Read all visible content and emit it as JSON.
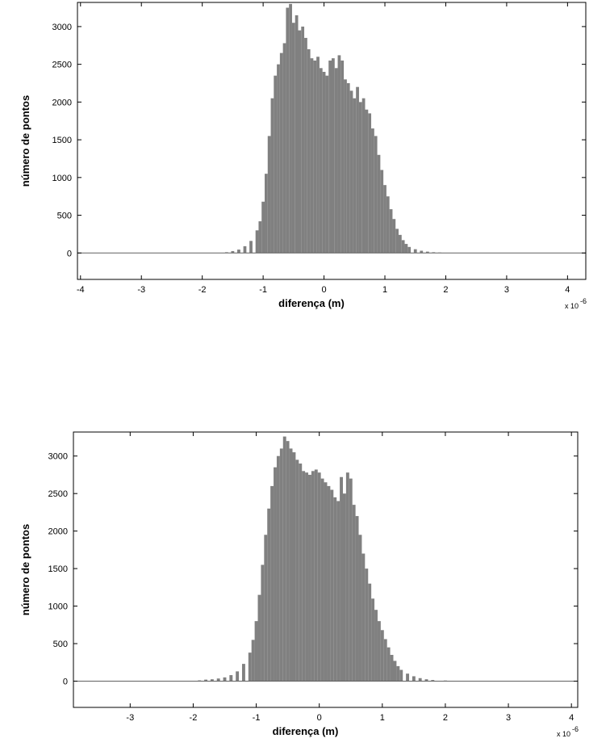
{
  "chart_data": [
    {
      "type": "bar",
      "xlabel": "diferença (m)",
      "ylabel": "número de pontos",
      "x_multiplier_label": "x 10",
      "x_multiplier_exponent": "-6",
      "xlim": [
        -4.05,
        4.3
      ],
      "ylim": [
        -350,
        3320
      ],
      "x_ticks": [
        -4,
        -3,
        -2,
        -1,
        0,
        1,
        2,
        3,
        4
      ],
      "y_ticks": [
        0,
        500,
        1000,
        1500,
        2000,
        2500,
        3000
      ],
      "bar_color": "#808080",
      "grid": false,
      "zero_line": true,
      "bins": [
        {
          "x": -1.6,
          "y": 10
        },
        {
          "x": -1.5,
          "y": 25
        },
        {
          "x": -1.4,
          "y": 45
        },
        {
          "x": -1.3,
          "y": 90
        },
        {
          "x": -1.2,
          "y": 160
        },
        {
          "x": -1.1,
          "y": 300
        },
        {
          "x": -1.05,
          "y": 420
        },
        {
          "x": -1.0,
          "y": 680
        },
        {
          "x": -0.95,
          "y": 1050
        },
        {
          "x": -0.9,
          "y": 1550
        },
        {
          "x": -0.85,
          "y": 2050
        },
        {
          "x": -0.8,
          "y": 2350
        },
        {
          "x": -0.75,
          "y": 2500
        },
        {
          "x": -0.7,
          "y": 2650
        },
        {
          "x": -0.65,
          "y": 2780
        },
        {
          "x": -0.6,
          "y": 3250
        },
        {
          "x": -0.55,
          "y": 3300
        },
        {
          "x": -0.5,
          "y": 3050
        },
        {
          "x": -0.45,
          "y": 3150
        },
        {
          "x": -0.4,
          "y": 2950
        },
        {
          "x": -0.35,
          "y": 3000
        },
        {
          "x": -0.3,
          "y": 2850
        },
        {
          "x": -0.25,
          "y": 2700
        },
        {
          "x": -0.2,
          "y": 2580
        },
        {
          "x": -0.15,
          "y": 2550
        },
        {
          "x": -0.1,
          "y": 2600
        },
        {
          "x": -0.05,
          "y": 2450
        },
        {
          "x": 0.0,
          "y": 2400
        },
        {
          "x": 0.05,
          "y": 2350
        },
        {
          "x": 0.1,
          "y": 2550
        },
        {
          "x": 0.15,
          "y": 2580
        },
        {
          "x": 0.2,
          "y": 2450
        },
        {
          "x": 0.25,
          "y": 2620
        },
        {
          "x": 0.3,
          "y": 2550
        },
        {
          "x": 0.35,
          "y": 2300
        },
        {
          "x": 0.4,
          "y": 2250
        },
        {
          "x": 0.45,
          "y": 2150
        },
        {
          "x": 0.5,
          "y": 2050
        },
        {
          "x": 0.55,
          "y": 2200
        },
        {
          "x": 0.6,
          "y": 2000
        },
        {
          "x": 0.65,
          "y": 2050
        },
        {
          "x": 0.7,
          "y": 1900
        },
        {
          "x": 0.75,
          "y": 1850
        },
        {
          "x": 0.8,
          "y": 1650
        },
        {
          "x": 0.85,
          "y": 1550
        },
        {
          "x": 0.9,
          "y": 1300
        },
        {
          "x": 0.95,
          "y": 1100
        },
        {
          "x": 1.0,
          "y": 900
        },
        {
          "x": 1.05,
          "y": 750
        },
        {
          "x": 1.1,
          "y": 580
        },
        {
          "x": 1.15,
          "y": 450
        },
        {
          "x": 1.2,
          "y": 320
        },
        {
          "x": 1.25,
          "y": 240
        },
        {
          "x": 1.3,
          "y": 170
        },
        {
          "x": 1.35,
          "y": 120
        },
        {
          "x": 1.4,
          "y": 80
        },
        {
          "x": 1.5,
          "y": 50
        },
        {
          "x": 1.6,
          "y": 30
        },
        {
          "x": 1.7,
          "y": 18
        },
        {
          "x": 1.8,
          "y": 10
        },
        {
          "x": 1.9,
          "y": 6
        }
      ]
    },
    {
      "type": "bar",
      "xlabel": "diferença (m)",
      "ylabel": "número de pontos",
      "x_multiplier_label": "x 10",
      "x_multiplier_exponent": "-6",
      "xlim": [
        -3.9,
        4.1
      ],
      "ylim": [
        -350,
        3320
      ],
      "x_ticks": [
        -3,
        -2,
        -1,
        0,
        1,
        2,
        3,
        4
      ],
      "y_ticks": [
        0,
        500,
        1000,
        1500,
        2000,
        2500,
        3000
      ],
      "bar_color": "#808080",
      "grid": false,
      "zero_line": true,
      "bins": [
        {
          "x": -1.9,
          "y": 10
        },
        {
          "x": -1.8,
          "y": 20
        },
        {
          "x": -1.7,
          "y": 25
        },
        {
          "x": -1.6,
          "y": 35
        },
        {
          "x": -1.5,
          "y": 50
        },
        {
          "x": -1.4,
          "y": 80
        },
        {
          "x": -1.3,
          "y": 130
        },
        {
          "x": -1.2,
          "y": 230
        },
        {
          "x": -1.1,
          "y": 380
        },
        {
          "x": -1.05,
          "y": 550
        },
        {
          "x": -1.0,
          "y": 800
        },
        {
          "x": -0.95,
          "y": 1150
        },
        {
          "x": -0.9,
          "y": 1550
        },
        {
          "x": -0.85,
          "y": 1950
        },
        {
          "x": -0.8,
          "y": 2300
        },
        {
          "x": -0.75,
          "y": 2600
        },
        {
          "x": -0.7,
          "y": 2850
        },
        {
          "x": -0.65,
          "y": 3000
        },
        {
          "x": -0.6,
          "y": 3100
        },
        {
          "x": -0.55,
          "y": 3260
        },
        {
          "x": -0.5,
          "y": 3200
        },
        {
          "x": -0.45,
          "y": 3100
        },
        {
          "x": -0.4,
          "y": 3050
        },
        {
          "x": -0.35,
          "y": 2950
        },
        {
          "x": -0.3,
          "y": 2900
        },
        {
          "x": -0.25,
          "y": 2800
        },
        {
          "x": -0.2,
          "y": 2780
        },
        {
          "x": -0.15,
          "y": 2750
        },
        {
          "x": -0.1,
          "y": 2800
        },
        {
          "x": -0.05,
          "y": 2820
        },
        {
          "x": 0.0,
          "y": 2780
        },
        {
          "x": 0.05,
          "y": 2700
        },
        {
          "x": 0.1,
          "y": 2650
        },
        {
          "x": 0.15,
          "y": 2600
        },
        {
          "x": 0.2,
          "y": 2550
        },
        {
          "x": 0.25,
          "y": 2450
        },
        {
          "x": 0.3,
          "y": 2400
        },
        {
          "x": 0.35,
          "y": 2720
        },
        {
          "x": 0.4,
          "y": 2500
        },
        {
          "x": 0.45,
          "y": 2780
        },
        {
          "x": 0.5,
          "y": 2700
        },
        {
          "x": 0.55,
          "y": 2350
        },
        {
          "x": 0.6,
          "y": 2200
        },
        {
          "x": 0.65,
          "y": 1950
        },
        {
          "x": 0.7,
          "y": 1700
        },
        {
          "x": 0.75,
          "y": 1500
        },
        {
          "x": 0.8,
          "y": 1300
        },
        {
          "x": 0.85,
          "y": 1100
        },
        {
          "x": 0.9,
          "y": 950
        },
        {
          "x": 0.95,
          "y": 800
        },
        {
          "x": 1.0,
          "y": 680
        },
        {
          "x": 1.05,
          "y": 560
        },
        {
          "x": 1.1,
          "y": 450
        },
        {
          "x": 1.15,
          "y": 350
        },
        {
          "x": 1.2,
          "y": 270
        },
        {
          "x": 1.25,
          "y": 200
        },
        {
          "x": 1.3,
          "y": 150
        },
        {
          "x": 1.4,
          "y": 100
        },
        {
          "x": 1.5,
          "y": 65
        },
        {
          "x": 1.6,
          "y": 40
        },
        {
          "x": 1.7,
          "y": 25
        },
        {
          "x": 1.8,
          "y": 15
        },
        {
          "x": 2.0,
          "y": 8
        },
        {
          "x": 2.2,
          "y": 5
        }
      ]
    }
  ]
}
